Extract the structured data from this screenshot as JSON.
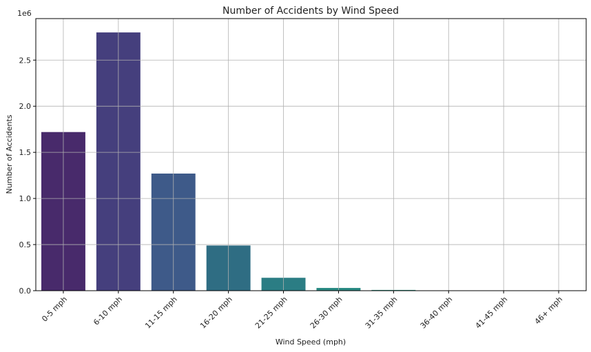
{
  "chart_data": {
    "type": "bar",
    "title": "Number of Accidents by Wind Speed",
    "xlabel": "Wind Speed (mph)",
    "ylabel": "Number of Accidents",
    "offset_label": "1e6",
    "categories": [
      "0-5 mph",
      "6-10 mph",
      "11-15 mph",
      "16-20 mph",
      "21-25 mph",
      "26-30 mph",
      "31-35 mph",
      "36-40 mph",
      "41-45 mph",
      "46+ mph"
    ],
    "values": [
      1.72,
      2.8,
      1.27,
      0.49,
      0.14,
      0.03,
      0.008,
      0.002,
      0.001,
      0.001
    ],
    "value_scale": 1000000,
    "ylim": [
      0,
      2.95
    ],
    "yticks": [
      0.0,
      0.5,
      1.0,
      1.5,
      2.0,
      2.5
    ],
    "ytick_labels": [
      "0.0",
      "0.5",
      "1.0",
      "1.5",
      "2.0",
      "2.5"
    ],
    "grid": true,
    "colors": [
      "#482a6b",
      "#453f7d",
      "#3e5a89",
      "#2f6d83",
      "#2b7d84",
      "#2a8a83",
      "#2b9282",
      "#2ba07f",
      "#30ab7a",
      "#3ab578"
    ]
  }
}
